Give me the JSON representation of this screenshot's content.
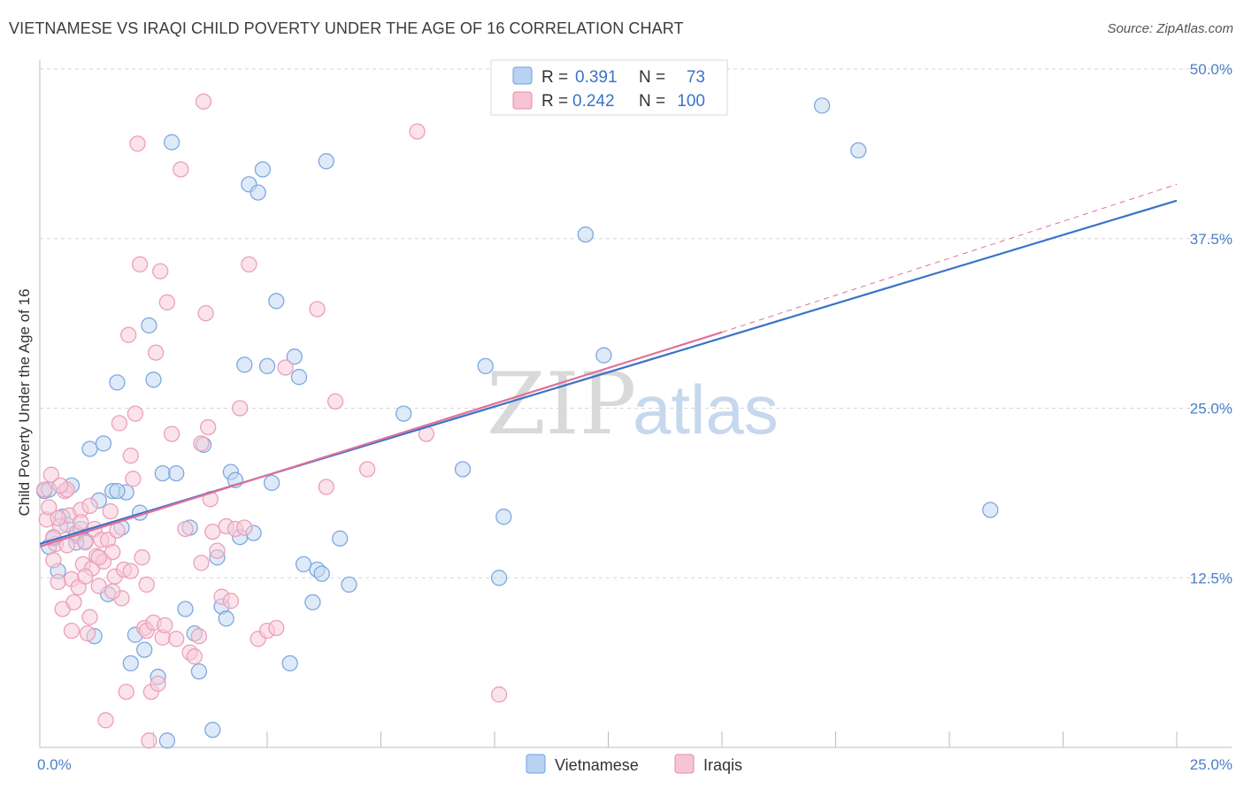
{
  "header": {
    "title": "VIETNAMESE VS IRAQI CHILD POVERTY UNDER THE AGE OF 16 CORRELATION CHART",
    "source": "Source: ZipAtlas.com"
  },
  "watermark": {
    "zip": "ZIP",
    "atlas": "atlas"
  },
  "legend": {
    "r_label": "R =",
    "n_label": "N =",
    "entries": [
      {
        "name": "Vietnamese",
        "r": "0.391",
        "n": "73",
        "color": "#6fa0e0",
        "fill": "#b8d2f2"
      },
      {
        "name": "Iraqis",
        "r": "0.242",
        "n": "100",
        "color": "#e58aa8",
        "fill": "#f6c4d3"
      }
    ]
  },
  "colors": {
    "viet_stroke": "#7fa8de",
    "viet_fill": "#c3d8f3",
    "viet_line": "#3a73c8",
    "iraq_stroke": "#eba0b8",
    "iraq_fill": "#f8ccda",
    "iraq_line": "#e07099",
    "axis_label": "#4a7fc8",
    "grid": "#d6d6d6"
  },
  "chart_data": {
    "type": "scatter",
    "title": "VIETNAMESE VS IRAQI CHILD POVERTY UNDER THE AGE OF 16 CORRELATION CHART",
    "xlabel": "",
    "ylabel": "Child Poverty Under the Age of 16",
    "xlim": [
      0,
      25
    ],
    "ylim": [
      0,
      50
    ],
    "x_tick_labels": [
      "0.0%",
      "25.0%"
    ],
    "y_ticks": [
      12.5,
      25.0,
      37.5,
      50.0
    ],
    "y_tick_labels": [
      "12.5%",
      "25.0%",
      "37.5%",
      "50.0%"
    ],
    "grid": true,
    "series": [
      {
        "name": "Vietnamese",
        "r": 0.391,
        "n": 73,
        "trend": {
          "x": [
            0,
            25
          ],
          "y": [
            15.0,
            40.3
          ]
        },
        "points": [
          [
            0.1,
            18.9
          ],
          [
            0.2,
            14.8
          ],
          [
            0.3,
            15.4
          ],
          [
            0.4,
            13.0
          ],
          [
            0.5,
            17.0
          ],
          [
            0.6,
            16.4
          ],
          [
            0.7,
            19.3
          ],
          [
            0.8,
            15.6
          ],
          [
            0.9,
            16.1
          ],
          [
            1.0,
            15.2
          ],
          [
            1.1,
            22.0
          ],
          [
            1.2,
            8.2
          ],
          [
            1.3,
            18.2
          ],
          [
            1.4,
            22.4
          ],
          [
            1.5,
            11.3
          ],
          [
            1.6,
            18.9
          ],
          [
            1.7,
            26.9
          ],
          [
            1.8,
            16.2
          ],
          [
            1.9,
            18.8
          ],
          [
            2.0,
            6.2
          ],
          [
            2.1,
            8.3
          ],
          [
            2.2,
            17.3
          ],
          [
            2.3,
            7.2
          ],
          [
            2.4,
            31.1
          ],
          [
            2.5,
            27.1
          ],
          [
            2.6,
            5.2
          ],
          [
            2.7,
            20.2
          ],
          [
            2.8,
            0.5
          ],
          [
            2.9,
            44.6
          ],
          [
            3.0,
            20.2
          ],
          [
            3.2,
            10.2
          ],
          [
            3.3,
            16.2
          ],
          [
            3.4,
            8.4
          ],
          [
            3.5,
            5.6
          ],
          [
            3.6,
            22.3
          ],
          [
            3.8,
            1.3
          ],
          [
            3.9,
            14.0
          ],
          [
            4.0,
            10.4
          ],
          [
            4.1,
            9.5
          ],
          [
            4.2,
            20.3
          ],
          [
            4.3,
            19.7
          ],
          [
            4.4,
            15.5
          ],
          [
            4.5,
            28.2
          ],
          [
            4.6,
            41.5
          ],
          [
            4.7,
            15.8
          ],
          [
            4.8,
            40.9
          ],
          [
            4.9,
            42.6
          ],
          [
            5.0,
            28.1
          ],
          [
            5.1,
            19.5
          ],
          [
            5.2,
            32.9
          ],
          [
            5.5,
            6.2
          ],
          [
            5.6,
            28.8
          ],
          [
            5.7,
            27.3
          ],
          [
            5.8,
            13.5
          ],
          [
            6.0,
            10.7
          ],
          [
            6.1,
            13.1
          ],
          [
            6.2,
            12.8
          ],
          [
            6.3,
            43.2
          ],
          [
            6.6,
            15.4
          ],
          [
            6.8,
            12.0
          ],
          [
            8.0,
            24.6
          ],
          [
            9.3,
            20.5
          ],
          [
            9.8,
            28.1
          ],
          [
            10.1,
            12.5
          ],
          [
            10.2,
            17.0
          ],
          [
            12.0,
            37.8
          ],
          [
            12.4,
            28.9
          ],
          [
            17.2,
            47.3
          ],
          [
            18.0,
            44.0
          ],
          [
            20.9,
            17.5
          ],
          [
            0.2,
            19.0
          ],
          [
            0.8,
            15.1
          ],
          [
            1.7,
            18.9
          ]
        ]
      },
      {
        "name": "Iraqis",
        "r": 0.242,
        "n": 100,
        "trend": {
          "x": [
            0,
            15
          ],
          "y": [
            14.8,
            30.6
          ]
        },
        "trend_dashed": {
          "x": [
            15,
            25
          ],
          "y": [
            30.6,
            41.5
          ]
        },
        "points": [
          [
            0.1,
            19.0
          ],
          [
            0.15,
            16.8
          ],
          [
            0.2,
            17.7
          ],
          [
            0.3,
            13.8
          ],
          [
            0.35,
            15.0
          ],
          [
            0.4,
            12.2
          ],
          [
            0.45,
            16.3
          ],
          [
            0.5,
            10.2
          ],
          [
            0.55,
            18.9
          ],
          [
            0.6,
            14.9
          ],
          [
            0.65,
            17.1
          ],
          [
            0.7,
            12.4
          ],
          [
            0.75,
            10.7
          ],
          [
            0.8,
            15.8
          ],
          [
            0.85,
            11.8
          ],
          [
            0.9,
            17.5
          ],
          [
            0.95,
            13.5
          ],
          [
            1.0,
            15.1
          ],
          [
            1.05,
            8.4
          ],
          [
            1.1,
            9.6
          ],
          [
            1.15,
            13.2
          ],
          [
            1.2,
            16.1
          ],
          [
            1.25,
            14.1
          ],
          [
            1.3,
            11.9
          ],
          [
            1.35,
            15.3
          ],
          [
            1.4,
            13.7
          ],
          [
            1.45,
            2.0
          ],
          [
            1.5,
            15.3
          ],
          [
            1.55,
            17.4
          ],
          [
            1.6,
            14.4
          ],
          [
            1.65,
            12.6
          ],
          [
            1.7,
            16.0
          ],
          [
            1.75,
            23.9
          ],
          [
            1.8,
            11.0
          ],
          [
            1.85,
            13.1
          ],
          [
            1.9,
            4.1
          ],
          [
            1.95,
            30.4
          ],
          [
            2.0,
            13.0
          ],
          [
            2.05,
            19.8
          ],
          [
            2.1,
            24.6
          ],
          [
            2.15,
            44.5
          ],
          [
            2.2,
            35.6
          ],
          [
            2.25,
            14.0
          ],
          [
            2.3,
            8.8
          ],
          [
            2.35,
            8.6
          ],
          [
            2.4,
            0.5
          ],
          [
            2.45,
            4.1
          ],
          [
            2.5,
            9.2
          ],
          [
            2.55,
            29.1
          ],
          [
            2.6,
            4.7
          ],
          [
            2.65,
            35.1
          ],
          [
            2.7,
            8.1
          ],
          [
            2.75,
            9.0
          ],
          [
            2.8,
            32.8
          ],
          [
            2.9,
            23.1
          ],
          [
            3.0,
            8.0
          ],
          [
            3.1,
            42.6
          ],
          [
            3.2,
            16.1
          ],
          [
            3.3,
            7.0
          ],
          [
            3.4,
            6.7
          ],
          [
            3.5,
            8.2
          ],
          [
            3.55,
            13.6
          ],
          [
            3.6,
            47.6
          ],
          [
            3.65,
            32.0
          ],
          [
            3.7,
            23.6
          ],
          [
            3.75,
            18.3
          ],
          [
            3.8,
            15.9
          ],
          [
            3.9,
            14.5
          ],
          [
            4.0,
            11.1
          ],
          [
            4.1,
            16.3
          ],
          [
            4.2,
            10.8
          ],
          [
            4.3,
            16.1
          ],
          [
            4.4,
            25.0
          ],
          [
            4.5,
            16.2
          ],
          [
            4.6,
            35.6
          ],
          [
            4.8,
            8.0
          ],
          [
            5.0,
            8.6
          ],
          [
            5.2,
            8.8
          ],
          [
            5.4,
            28.0
          ],
          [
            6.1,
            32.3
          ],
          [
            6.3,
            19.2
          ],
          [
            6.5,
            25.5
          ],
          [
            7.2,
            20.5
          ],
          [
            8.3,
            45.4
          ],
          [
            8.5,
            23.1
          ],
          [
            10.1,
            3.9
          ],
          [
            0.25,
            20.1
          ],
          [
            0.6,
            19.0
          ],
          [
            1.0,
            12.6
          ],
          [
            1.6,
            11.5
          ],
          [
            2.0,
            21.5
          ],
          [
            0.4,
            16.9
          ],
          [
            0.9,
            16.6
          ],
          [
            1.3,
            14.0
          ],
          [
            0.3,
            15.5
          ],
          [
            1.1,
            17.8
          ],
          [
            2.35,
            12.0
          ],
          [
            0.7,
            8.6
          ],
          [
            3.55,
            22.4
          ],
          [
            0.45,
            19.3
          ]
        ]
      }
    ]
  }
}
